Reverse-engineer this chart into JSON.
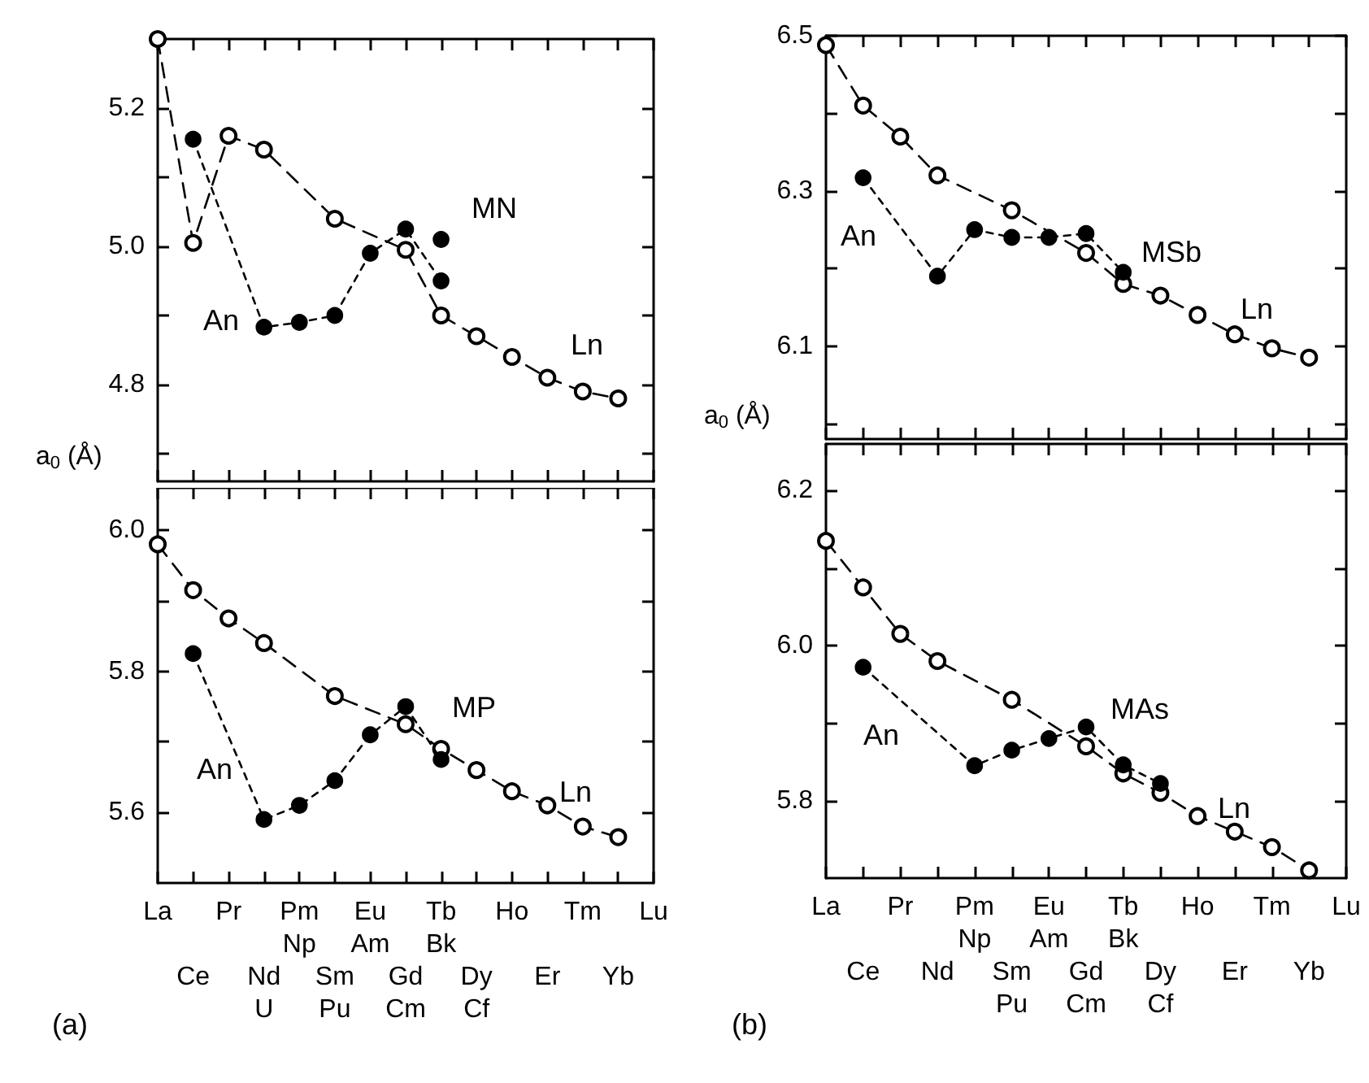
{
  "chart_data": [
    {
      "type": "line",
      "ylabel": "a$_{0}$ (Å)",
      "annotations": [
        "MN"
      ],
      "tick_labels": "y",
      "legend": false,
      "grid": false,
      "marker": "circle",
      "categories": [
        "La",
        "Ce",
        "Pr",
        "Nd\nU",
        "Pm\nNp",
        "Sm\nPu",
        "Eu\nAm",
        "Gd\nCm",
        "Tb\nBk",
        "Dy\nCf",
        "Ho",
        "Er",
        "Tm",
        "Yb",
        "Lu"
      ],
      "ylim": [
        4.66,
        5.3
      ],
      "yticks": [
        {
          "value": 4.7,
          "label": null
        },
        4.8,
        {
          "value": 4.9,
          "label": null
        },
        {
          "value": 5.0,
          "label": "5.0"
        },
        {
          "value": 5.1,
          "label": null
        },
        5.2
      ],
      "series": [
        {
          "name": "Ln",
          "color": "#000000",
          "line_style": "dashed",
          "values": [
            5.3,
            5.005,
            5.16,
            5.14,
            null,
            5.04,
            null,
            4.995,
            4.9,
            4.87,
            4.84,
            4.81,
            4.79,
            4.78,
            null
          ]
        },
        {
          "name": "An",
          "color": "#000000",
          "line_style": "dotted",
          "values": [
            null,
            5.155,
            null,
            4.883,
            4.89,
            4.9,
            4.99,
            5.025,
            4.95,
            null,
            null,
            null,
            null,
            null,
            null
          ]
        },
        {
          "type": "scatter",
          "color": "#000000",
          "x": [
            "Tb\nBk"
          ],
          "values": [
            5.01
          ]
        }
      ]
    },
    {
      "type": "line",
      "annotations": [
        "MP",
        "(a)"
      ],
      "legend": false,
      "grid": false,
      "marker": "circle",
      "categories": [
        "La",
        "Ce",
        "Pr",
        "Nd\nU",
        "Pm\nNp",
        "Sm\nPu",
        "Eu\nAm",
        "Gd\nCm",
        "Tb\nBk",
        "Dy\nCf",
        "Ho",
        "Er",
        "Tm",
        "Yb",
        "Lu"
      ],
      "ylim": [
        5.5,
        6.06
      ],
      "yticks": [
        {
          "value": 5.6,
          "label": "5.6"
        },
        {
          "value": 5.7,
          "label": null
        },
        {
          "value": 5.8,
          "label": "5.8"
        },
        {
          "value": 5.9,
          "label": null
        },
        {
          "value": 6.0,
          "label": "6.0"
        }
      ],
      "series": [
        {
          "name": "Ln",
          "color": "#000000",
          "line_style": "dashed",
          "values": [
            5.98,
            5.915,
            5.875,
            5.84,
            null,
            5.765,
            null,
            5.725,
            5.69,
            5.66,
            5.63,
            5.61,
            5.58,
            5.565,
            null
          ]
        },
        {
          "name": "An",
          "color": "#000000",
          "line_style": "dotted",
          "values": [
            null,
            5.825,
            null,
            5.59,
            5.61,
            5.645,
            5.71,
            5.75,
            5.675,
            null,
            null,
            null,
            null,
            null,
            null
          ]
        }
      ]
    },
    {
      "type": "line",
      "ylabel": "a$_{0}$ (Å)",
      "annotations": [
        "MSb"
      ],
      "tick_labels": "y",
      "legend": false,
      "grid": false,
      "marker": "circle",
      "categories": [
        "La",
        "Ce",
        "Pr",
        "Nd",
        "Pm\nNp",
        "Sm\nPu",
        "Eu\nAm",
        "Gd\nCm",
        "Tb\nBk",
        "Dy\nCf",
        "Ho",
        "Er",
        "Tm",
        "Yb",
        "Lu"
      ],
      "ylim": [
        5.98,
        6.5
      ],
      "yticks": [
        {
          "value": 6.0,
          "label": null
        },
        6.1,
        {
          "value": 6.2,
          "label": null
        },
        6.3,
        {
          "value": 6.4,
          "label": null
        },
        6.5
      ],
      "series": [
        {
          "name": "Ln",
          "color": "#000000",
          "line_style": "dashed",
          "values": [
            6.488,
            6.41,
            6.37,
            6.32,
            null,
            6.275,
            null,
            6.22,
            6.18,
            6.165,
            6.14,
            6.115,
            6.097,
            6.085,
            null
          ]
        },
        {
          "name": "An",
          "color": "#000000",
          "line_style": "dotted",
          "values": [
            null,
            6.317,
            null,
            6.19,
            6.25,
            6.24,
            6.24,
            6.245,
            6.195,
            null,
            null,
            null,
            null,
            null,
            null
          ]
        }
      ]
    },
    {
      "type": "line",
      "annotations": [
        "MAs",
        "(b)"
      ],
      "legend": false,
      "grid": false,
      "marker": "circle",
      "categories": [
        "La",
        "Ce",
        "Pr",
        "Nd",
        "Pm\nNp",
        "Sm\nPu",
        "Eu\nAm",
        "Gd\nCm",
        "Tb\nBk",
        "Dy\nCf",
        "Ho",
        "Er",
        "Tm",
        "Yb",
        "Lu"
      ],
      "ylim": [
        5.7,
        6.26
      ],
      "yticks": [
        {
          "value": 5.8,
          "label": "5.8"
        },
        {
          "value": 5.9,
          "label": null
        },
        {
          "value": 6.0,
          "label": "6.0"
        },
        {
          "value": 6.1,
          "label": null
        },
        {
          "value": 6.2,
          "label": "6.2"
        }
      ],
      "series": [
        {
          "name": "Ln",
          "color": "#000000",
          "line_style": "dashed",
          "values": [
            6.135,
            6.075,
            6.015,
            5.98,
            null,
            5.93,
            null,
            5.87,
            5.835,
            5.81,
            5.78,
            5.76,
            5.74,
            5.71,
            null
          ]
        },
        {
          "name": "An",
          "color": "#000000",
          "line_style": "dotted",
          "values": [
            null,
            5.972,
            null,
            null,
            5.845,
            5.865,
            5.88,
            5.895,
            5.846,
            5.822,
            null,
            null,
            null,
            null,
            null
          ]
        }
      ]
    }
  ]
}
